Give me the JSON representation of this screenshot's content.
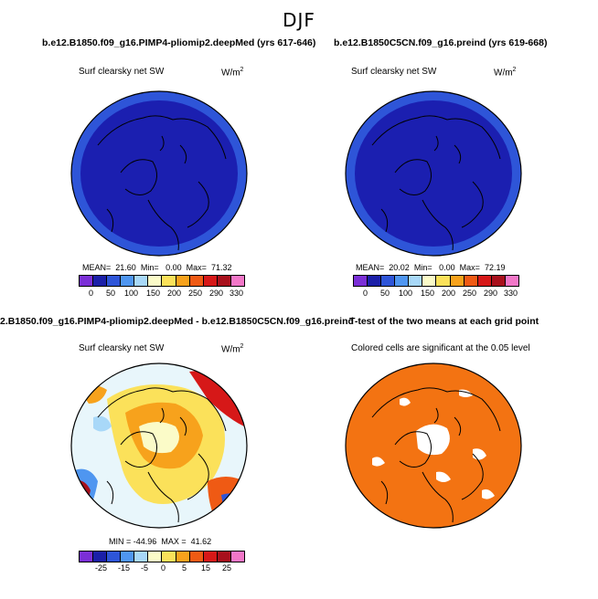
{
  "figure": {
    "title": "DJF"
  },
  "panels": {
    "top_left": {
      "title": "b.e12.B1850.f09_g16.PIMP4-pliomip2.deepMed (yrs 617-646)",
      "variable": "Surf clearsky net SW",
      "units": "W/m",
      "units_sup": "2",
      "stats": {
        "mean_label": "MEAN=",
        "mean": "21.60",
        "min_label": "Min=",
        "min": "0.00",
        "max_label": "Max=",
        "max": "71.32"
      },
      "colorbar_ticks": [
        "0",
        "50",
        "100",
        "150",
        "200",
        "250",
        "290",
        "330"
      ]
    },
    "top_right": {
      "title": "b.e12.B1850C5CN.f09_g16.preind (yrs 619-668)",
      "variable": "Surf clearsky net SW",
      "units": "W/m",
      "units_sup": "2",
      "stats": {
        "mean_label": "MEAN=",
        "mean": "20.02",
        "min_label": "Min=",
        "min": "0.00",
        "max_label": "Max=",
        "max": "72.19"
      },
      "colorbar_ticks": [
        "0",
        "50",
        "100",
        "150",
        "200",
        "250",
        "290",
        "330"
      ]
    },
    "bottom_left": {
      "title": "2.B1850.f09_g16.PIMP4-pliomip2.deepMed - b.e12.B1850C5CN.f09_g16.preind",
      "variable": "Surf clearsky net SW",
      "units": "W/m",
      "units_sup": "2",
      "stats": {
        "min_label": "MIN =",
        "min": "-44.96",
        "max_label": "MAX =",
        "max": "41.62"
      },
      "colorbar_ticks": [
        "-25",
        "-15",
        "-5",
        "0",
        "5",
        "15",
        "25"
      ]
    },
    "bottom_right": {
      "title": "T-test of the two means at each grid point",
      "subtitle": "Colored cells are significant at the 0.05 level"
    }
  },
  "colors": {
    "abs_colorbar": [
      "#7b2fd6",
      "#1b1fa8",
      "#2e55d8",
      "#4f96f0",
      "#a8d8f8",
      "#fbfbc8",
      "#fbe15a",
      "#f7a21c",
      "#ef5a14",
      "#d61818",
      "#a8101c",
      "#f277c8"
    ],
    "diff_colorbar": [
      "#7b2fd6",
      "#1b1fa8",
      "#2e55d8",
      "#4f96f0",
      "#a8d8f8",
      "#fbfbc8",
      "#fbe15a",
      "#f7a21c",
      "#ef5a14",
      "#d61818",
      "#a8101c",
      "#f277c8"
    ],
    "ttest_fill": "#f37312",
    "map_deep_blue": "#1b1fb0",
    "map_outer_blue": "#2e55d8"
  }
}
